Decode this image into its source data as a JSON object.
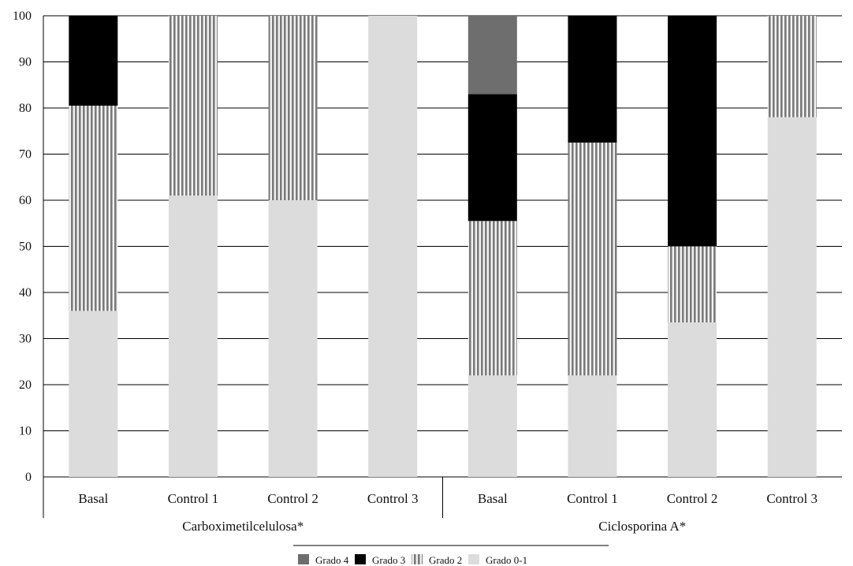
{
  "chart_data": {
    "type": "bar",
    "stacked": true,
    "title": "",
    "xlabel": "",
    "ylabel": "",
    "ylim": [
      0,
      100
    ],
    "yticks": [
      "0",
      "10",
      "20",
      "30",
      "40",
      "50",
      "60",
      "70",
      "80",
      "90",
      "100"
    ],
    "grid": "horizontal",
    "legend_position": "bottom",
    "groups": [
      {
        "label": "Carboximetilcelulosa*",
        "categories": [
          "Basal",
          "Control 1",
          "Control 2",
          "Control 3"
        ]
      },
      {
        "label": "Ciclosporina A*",
        "categories": [
          "Basal",
          "Control 1",
          "Control 2",
          "Control 3"
        ]
      }
    ],
    "categories": [
      "Basal",
      "Control 1",
      "Control 2",
      "Control 3",
      "Basal",
      "Control 1",
      "Control 2",
      "Control 3"
    ],
    "series": [
      {
        "name": "Grado 0-1",
        "pattern": "solid",
        "color": "#dcdcdc",
        "values": [
          36,
          61,
          60,
          100,
          22,
          22,
          33.5,
          78
        ]
      },
      {
        "name": "Grado 2",
        "pattern": "vertical-stripes",
        "color": "#8a8a8a",
        "values": [
          44.5,
          39,
          40,
          0,
          33.5,
          50.5,
          16.5,
          22
        ]
      },
      {
        "name": "Grado 3",
        "pattern": "solid",
        "color": "#000000",
        "values": [
          19.5,
          0,
          0,
          0,
          27.5,
          27.5,
          50,
          0
        ]
      },
      {
        "name": "Grado 4",
        "pattern": "solid",
        "color": "#6e6e6e",
        "values": [
          0,
          0,
          0,
          0,
          17,
          0,
          0,
          0
        ]
      }
    ],
    "legend_order": [
      "Grado 4",
      "Grado 3",
      "Grado 2",
      "Grado 0-1"
    ]
  }
}
